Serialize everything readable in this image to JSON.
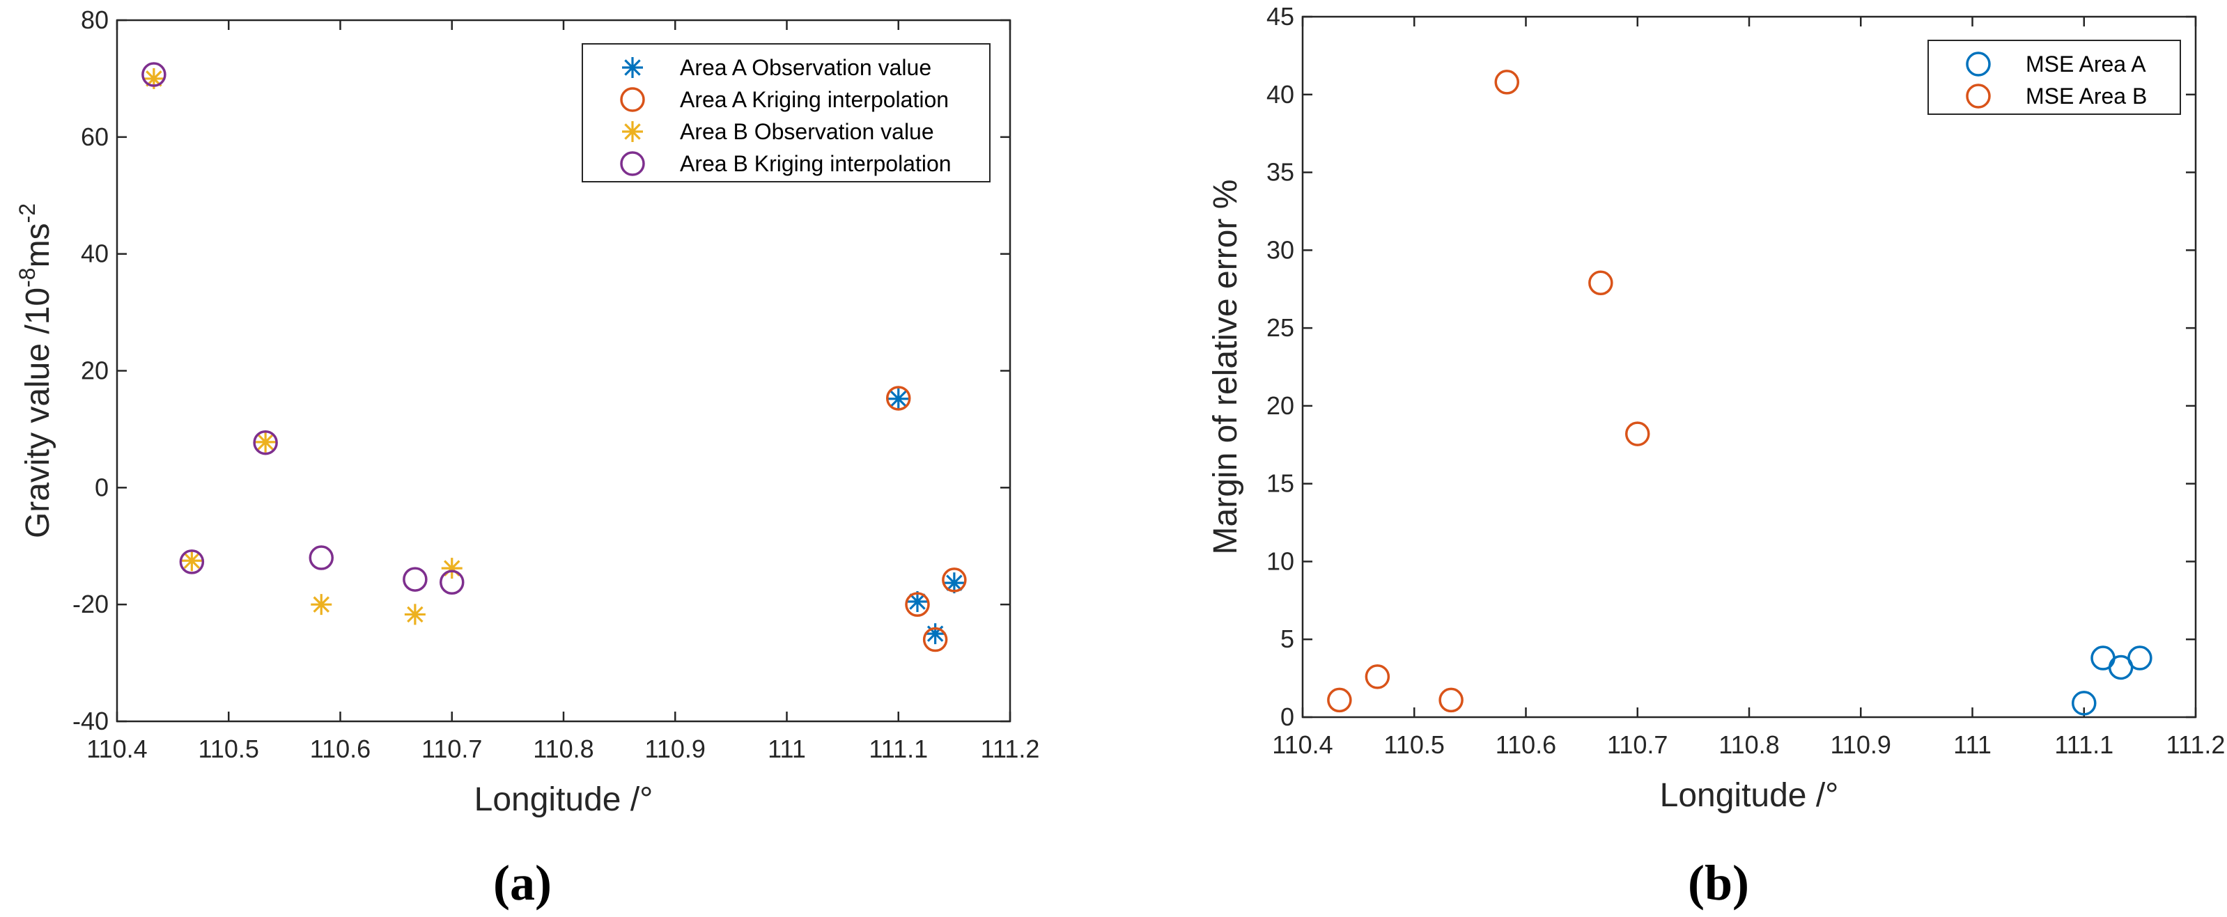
{
  "chart_data": [
    {
      "type": "scatter",
      "panel_label": "(a)",
      "xlabel": "Longitude /°",
      "ylabel_main": "Gravity value /10",
      "ylabel_sup1": "-8",
      "ylabel_mid": "ms",
      "ylabel_sup2": "-2",
      "xlim": [
        110.4,
        111.2
      ],
      "ylim": [
        -40,
        80
      ],
      "xticks": [
        110.4,
        110.5,
        110.6,
        110.7,
        110.8,
        110.9,
        111,
        111.1,
        111.2
      ],
      "xtick_labels": [
        "110.4",
        "110.5",
        "110.6",
        "110.7",
        "110.8",
        "110.9",
        "111",
        "111.1",
        "111.2"
      ],
      "yticks": [
        -40,
        -20,
        0,
        20,
        40,
        60,
        80
      ],
      "ytick_labels": [
        "-40",
        "-20",
        "0",
        "20",
        "40",
        "60",
        "80"
      ],
      "legend_position": "top-right",
      "series": [
        {
          "name": "Area A Observation value",
          "marker": "star",
          "color": "#0072BD",
          "x": [
            111.1,
            111.117,
            111.133,
            111.15
          ],
          "y": [
            15.2,
            -19.5,
            -25.0,
            -16.3
          ]
        },
        {
          "name": "Area A Kriging interpolation",
          "marker": "circle",
          "color": "#D95319",
          "x": [
            111.1,
            111.117,
            111.133,
            111.15
          ],
          "y": [
            15.3,
            -20.0,
            -26.0,
            -15.8
          ]
        },
        {
          "name": "Area B Observation value",
          "marker": "star",
          "color": "#EDB120",
          "x": [
            110.433,
            110.467,
            110.533,
            110.583,
            110.667,
            110.7
          ],
          "y": [
            70.0,
            -12.5,
            7.8,
            -20.0,
            -21.7,
            -13.8
          ]
        },
        {
          "name": "Area B Kriging interpolation",
          "marker": "circle",
          "color": "#7E2F8E",
          "x": [
            110.433,
            110.467,
            110.533,
            110.583,
            110.667,
            110.7
          ],
          "y": [
            70.7,
            -12.7,
            7.7,
            -12.0,
            -15.7,
            -16.2
          ]
        }
      ]
    },
    {
      "type": "scatter",
      "panel_label": "(b)",
      "xlabel": "Longitude /°",
      "ylabel": "Margin of relative error %",
      "xlim": [
        110.4,
        111.2
      ],
      "ylim": [
        0,
        45
      ],
      "xticks": [
        110.4,
        110.5,
        110.6,
        110.7,
        110.8,
        110.9,
        111,
        111.1,
        111.2
      ],
      "xtick_labels": [
        "110.4",
        "110.5",
        "110.6",
        "110.7",
        "110.8",
        "110.9",
        "111",
        "111.1",
        "111.2"
      ],
      "yticks": [
        0,
        5,
        10,
        15,
        20,
        25,
        30,
        35,
        40,
        45
      ],
      "ytick_labels": [
        "0",
        "5",
        "10",
        "15",
        "20",
        "25",
        "30",
        "35",
        "40",
        "45"
      ],
      "legend_position": "top-right",
      "series": [
        {
          "name": "MSE Area A",
          "marker": "circle",
          "color": "#0072BD",
          "x": [
            111.1,
            111.117,
            111.133,
            111.15
          ],
          "y": [
            0.9,
            3.8,
            3.2,
            3.8
          ]
        },
        {
          "name": "MSE Area B",
          "marker": "circle",
          "color": "#D95319",
          "x": [
            110.433,
            110.467,
            110.533,
            110.583,
            110.667,
            110.7
          ],
          "y": [
            1.1,
            2.6,
            1.1,
            40.8,
            27.9,
            18.2
          ]
        }
      ]
    }
  ]
}
